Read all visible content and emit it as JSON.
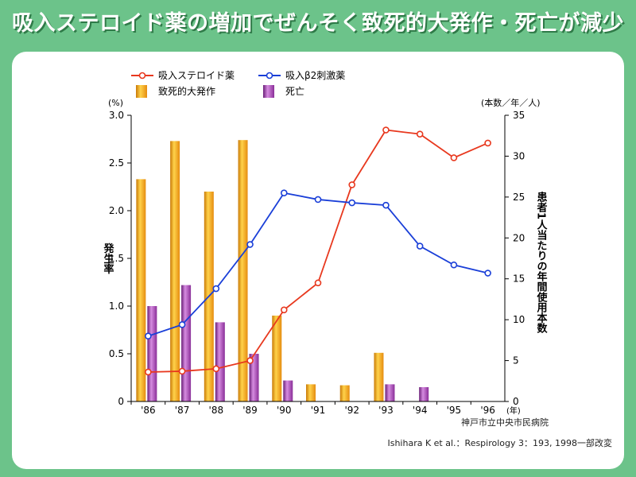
{
  "title": "吸入ステロイド薬の増加でぜんそく致死的大発作・死亡が減少",
  "chart_data": {
    "type": "bar+line",
    "categories": [
      "'86",
      "'87",
      "'88",
      "'89",
      "'90",
      "'91",
      "'92",
      "'93",
      "'94",
      "'95",
      "'96"
    ],
    "x_unit": "(年)",
    "left_axis": {
      "label": "発生率",
      "unit": "(%)",
      "ylim": [
        0,
        3.0
      ],
      "ticks": [
        "0",
        "0.5",
        "1.0",
        "1.5",
        "2.0",
        "2.5",
        "3.0"
      ]
    },
    "right_axis": {
      "label": "患者1人当たりの年間使用本数",
      "unit": "(本数／年／人)",
      "ylim": [
        0,
        35
      ],
      "ticks": [
        "0",
        "5",
        "10",
        "15",
        "20",
        "25",
        "30",
        "35"
      ]
    },
    "bar_series": [
      {
        "name": "致死的大発作",
        "color": "#f0a020",
        "values": [
          2.33,
          2.73,
          2.2,
          2.74,
          0.9,
          0.18,
          0.17,
          0.51,
          null,
          null,
          null
        ]
      },
      {
        "name": "死亡",
        "color": "#9a3ca0",
        "values": [
          1.0,
          1.22,
          0.83,
          0.5,
          0.22,
          null,
          null,
          0.18,
          0.15,
          null,
          null
        ]
      }
    ],
    "line_series": [
      {
        "name": "吸入ステロイド薬",
        "color": "#e8381e",
        "values": [
          3.6,
          3.7,
          4.0,
          5.0,
          11.2,
          14.5,
          26.5,
          33.2,
          32.7,
          29.8,
          31.6
        ]
      },
      {
        "name": "吸入β2刺激薬",
        "color": "#1a3fd8",
        "values": [
          8.0,
          9.4,
          13.8,
          19.2,
          25.5,
          24.7,
          24.3,
          24.0,
          19.0,
          16.7,
          15.7
        ]
      }
    ],
    "legend": [
      "吸入ステロイド薬",
      "吸入β2刺激薬",
      "致死的大発作",
      "死亡"
    ],
    "source": "神戸市立中央市民病院",
    "citation": "Ishihara K et al.：Respirology 3：193, 1998一部改変"
  }
}
